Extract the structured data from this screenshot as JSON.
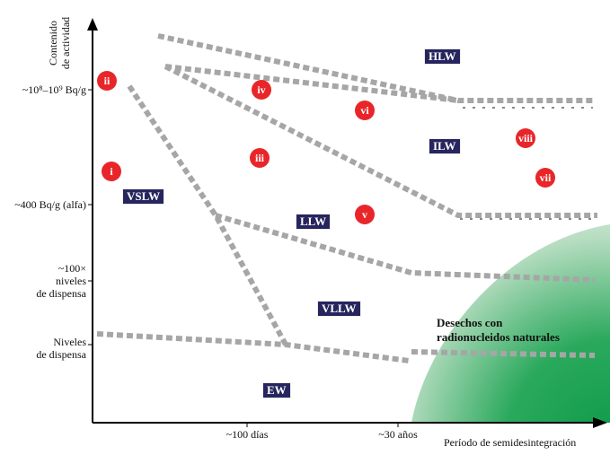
{
  "axes": {
    "y_title_line1": "Contenido",
    "y_title_line2": "de actividad",
    "x_title": "Período de semidesintegración"
  },
  "y_labels": {
    "high": "~10⁸–10⁹ Bq/g",
    "alpha": "~400 Bq/g (alfa)",
    "hundred_line1": "~100×",
    "hundred_line2": "niveles",
    "hundred_line3": "de dispensa",
    "clearance_line1": "Niveles",
    "clearance_line2": "de dispensa"
  },
  "x_labels": {
    "days": "~100 días",
    "years": "~30 años"
  },
  "classes": {
    "hlw": "HLW",
    "ilw": "ILW",
    "llw": "LLW",
    "vllw": "VLLW",
    "vslw": "VSLW",
    "ew": "EW"
  },
  "markers": {
    "i": "i",
    "ii": "ii",
    "iii": "iii",
    "iv": "iv",
    "v": "v",
    "vi": "vi",
    "vii": "vii",
    "viii": "viii"
  },
  "natural_line1": "Desechos con",
  "natural_line2": "radionucleidos naturales",
  "colors": {
    "box_fill": "#27255e",
    "marker_fill": "#e8262a",
    "boundary": "#a6a6a6",
    "natural_gradient_start": "#ffffff",
    "natural_gradient_end": "#0e9a48"
  }
}
